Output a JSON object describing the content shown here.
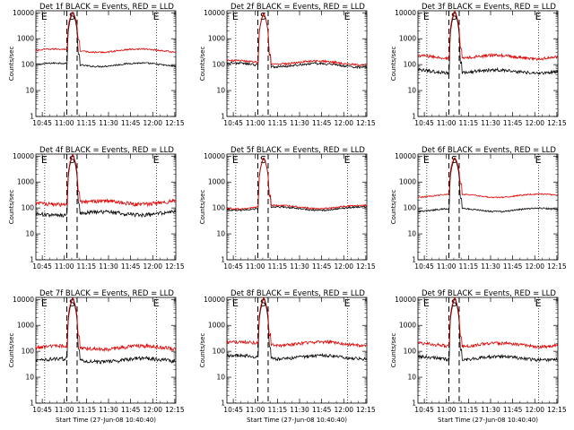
{
  "figure": {
    "colors": {
      "events": "#000000",
      "lld": "#e00000",
      "axes": "#000000",
      "background": "#ffffff"
    }
  },
  "chart_data": [
    {
      "type": "line",
      "title": "Det 1f BLACK = Events, RED = LLD",
      "xlabel": "",
      "ylabel": "Counts/sec",
      "x_ticks": [
        "10:45",
        "11:00",
        "11:15",
        "11:30",
        "11:45",
        "12:00",
        "12:15"
      ],
      "y_ticks": [
        "1",
        "10",
        "100",
        "1000",
        "10000"
      ],
      "yscale": "log",
      "xlim_min": [
        0,
        95
      ],
      "ylim": [
        1,
        12000
      ],
      "interval_markers": [
        {
          "label": "E",
          "at_min": 6
        },
        {
          "label": "S",
          "at_min": 25
        },
        {
          "label": "E",
          "at_min": 82
        }
      ],
      "dashed_lines_min": [
        21,
        28
      ],
      "dotted_lines_min": [
        6,
        82
      ],
      "flare": {
        "start_min": 21.5,
        "peak_min": 25,
        "end_min": 28.5,
        "peak_value": 11000
      },
      "series": [
        {
          "name": "Events",
          "color": "#000000",
          "baseline": 100,
          "amplitude": 0.05,
          "slope": 0.0
        },
        {
          "name": "LLD",
          "color": "#e00000",
          "baseline": 350,
          "amplitude": 0.05,
          "slope": 0.0
        }
      ]
    },
    {
      "type": "line",
      "title": "Det 2f BLACK = Events, RED = LLD",
      "xlabel": "",
      "ylabel": "Counts/sec",
      "x_ticks": [
        "10:45",
        "11:00",
        "11:15",
        "11:30",
        "11:45",
        "12:00",
        "12:15"
      ],
      "y_ticks": [
        "1",
        "10",
        "100",
        "1000",
        "10000"
      ],
      "yscale": "log",
      "xlim_min": [
        0,
        95
      ],
      "ylim": [
        1,
        12000
      ],
      "interval_markers": [
        {
          "label": "E",
          "at_min": 6
        },
        {
          "label": "S",
          "at_min": 25
        },
        {
          "label": "E",
          "at_min": 82
        }
      ],
      "dashed_lines_min": [
        21,
        28
      ],
      "dotted_lines_min": [
        6,
        82
      ],
      "flare": {
        "start_min": 21.5,
        "peak_min": 25,
        "end_min": 28.5,
        "peak_value": 10000
      },
      "series": [
        {
          "name": "Events",
          "color": "#000000",
          "baseline": 100,
          "amplitude": 0.07,
          "slope": -0.1
        },
        {
          "name": "LLD",
          "color": "#e00000",
          "baseline": 125,
          "amplitude": 0.07,
          "slope": -0.1
        }
      ]
    },
    {
      "type": "line",
      "title": "Det 3f BLACK = Events, RED = LLD",
      "xlabel": "",
      "ylabel": "Counts/sec",
      "x_ticks": [
        "10:45",
        "11:00",
        "11:15",
        "11:30",
        "11:45",
        "12:00",
        "12:15"
      ],
      "y_ticks": [
        "1",
        "10",
        "100",
        "1000",
        "10000"
      ],
      "yscale": "log",
      "xlim_min": [
        0,
        95
      ],
      "ylim": [
        1,
        12000
      ],
      "interval_markers": [
        {
          "label": "E",
          "at_min": 6
        },
        {
          "label": "S",
          "at_min": 25
        },
        {
          "label": "E",
          "at_min": 82
        }
      ],
      "dashed_lines_min": [
        21,
        28
      ],
      "dotted_lines_min": [
        6,
        82
      ],
      "flare": {
        "start_min": 21.5,
        "peak_min": 25,
        "end_min": 28.5,
        "peak_value": 12000
      },
      "series": [
        {
          "name": "Events",
          "color": "#000000",
          "baseline": 55,
          "amplitude": 0.1,
          "slope": 0.0
        },
        {
          "name": "LLD",
          "color": "#e00000",
          "baseline": 200,
          "amplitude": 0.1,
          "slope": 0.0
        }
      ]
    },
    {
      "type": "line",
      "title": "Det 4f BLACK = Events, RED = LLD",
      "xlabel": "",
      "ylabel": "Counts/sec",
      "x_ticks": [
        "10:45",
        "11:00",
        "11:15",
        "11:30",
        "11:45",
        "12:00",
        "12:15"
      ],
      "y_ticks": [
        "1",
        "10",
        "100",
        "1000",
        "10000"
      ],
      "yscale": "log",
      "xlim_min": [
        0,
        95
      ],
      "ylim": [
        1,
        12000
      ],
      "interval_markers": [
        {
          "label": "E",
          "at_min": 6
        },
        {
          "label": "S",
          "at_min": 25
        },
        {
          "label": "E",
          "at_min": 82
        }
      ],
      "dashed_lines_min": [
        21,
        28
      ],
      "dotted_lines_min": [
        6,
        82
      ],
      "flare": {
        "start_min": 21.5,
        "peak_min": 25,
        "end_min": 28.5,
        "peak_value": 12000
      },
      "series": [
        {
          "name": "Events",
          "color": "#000000",
          "baseline": 60,
          "amplitude": 0.12,
          "slope": 0.1
        },
        {
          "name": "LLD",
          "color": "#e00000",
          "baseline": 160,
          "amplitude": 0.12,
          "slope": 0.05
        }
      ]
    },
    {
      "type": "line",
      "title": "Det 5f BLACK = Events, RED = LLD",
      "xlabel": "",
      "ylabel": "Counts/sec",
      "x_ticks": [
        "10:45",
        "11:00",
        "11:15",
        "11:30",
        "11:45",
        "12:00",
        "12:15"
      ],
      "y_ticks": [
        "1",
        "10",
        "100",
        "1000",
        "10000"
      ],
      "yscale": "log",
      "xlim_min": [
        0,
        95
      ],
      "ylim": [
        1,
        12000
      ],
      "interval_markers": [
        {
          "label": "E",
          "at_min": 6
        },
        {
          "label": "S",
          "at_min": 25
        },
        {
          "label": "E",
          "at_min": 82
        }
      ],
      "dashed_lines_min": [
        21,
        28
      ],
      "dotted_lines_min": [
        6,
        82
      ],
      "flare": {
        "start_min": 21.5,
        "peak_min": 25,
        "end_min": 28.5,
        "peak_value": 9000
      },
      "series": [
        {
          "name": "Events",
          "color": "#000000",
          "baseline": 95,
          "amplitude": 0.05,
          "slope": 0.0
        },
        {
          "name": "LLD",
          "color": "#e00000",
          "baseline": 110,
          "amplitude": 0.05,
          "slope": 0.0
        }
      ]
    },
    {
      "type": "line",
      "title": "Det 6f BLACK = Events, RED = LLD",
      "xlabel": "",
      "ylabel": "Counts/sec",
      "x_ticks": [
        "10:45",
        "11:00",
        "11:15",
        "11:30",
        "11:45",
        "12:00",
        "12:15"
      ],
      "y_ticks": [
        "1",
        "10",
        "100",
        "1000",
        "10000"
      ],
      "yscale": "log",
      "xlim_min": [
        0,
        95
      ],
      "ylim": [
        1,
        12000
      ],
      "interval_markers": [
        {
          "label": "E",
          "at_min": 6
        },
        {
          "label": "S",
          "at_min": 25
        },
        {
          "label": "E",
          "at_min": 82
        }
      ],
      "dashed_lines_min": [
        21,
        28
      ],
      "dotted_lines_min": [
        6,
        82
      ],
      "flare": {
        "start_min": 21.5,
        "peak_min": 25,
        "end_min": 28.5,
        "peak_value": 9000
      },
      "series": [
        {
          "name": "Events",
          "color": "#000000",
          "baseline": 85,
          "amplitude": 0.05,
          "slope": 0.0
        },
        {
          "name": "LLD",
          "color": "#e00000",
          "baseline": 300,
          "amplitude": 0.04,
          "slope": 0.0
        }
      ]
    },
    {
      "type": "line",
      "title": "Det 7f BLACK = Events, RED = LLD",
      "xlabel": "Start Time (27-Jun-08 10:40:40)",
      "ylabel": "Counts/sec",
      "x_ticks": [
        "10:45",
        "11:00",
        "11:15",
        "11:30",
        "11:45",
        "12:00",
        "12:15"
      ],
      "y_ticks": [
        "1",
        "10",
        "100",
        "1000",
        "10000"
      ],
      "yscale": "log",
      "xlim_min": [
        0,
        95
      ],
      "ylim": [
        1,
        12000
      ],
      "interval_markers": [
        {
          "label": "E",
          "at_min": 6
        },
        {
          "label": "S",
          "at_min": 25
        },
        {
          "label": "E",
          "at_min": 82
        }
      ],
      "dashed_lines_min": [
        21,
        28
      ],
      "dotted_lines_min": [
        6,
        82
      ],
      "flare": {
        "start_min": 21.5,
        "peak_min": 25,
        "end_min": 28.5,
        "peak_value": 12000
      },
      "series": [
        {
          "name": "Events",
          "color": "#000000",
          "baseline": 45,
          "amplitude": 0.12,
          "slope": 0.05
        },
        {
          "name": "LLD",
          "color": "#e00000",
          "baseline": 140,
          "amplitude": 0.12,
          "slope": 0.0
        }
      ]
    },
    {
      "type": "line",
      "title": "Det 8f BLACK = Events, RED = LLD",
      "xlabel": "Start Time (27-Jun-08 10:40:40)",
      "ylabel": "Counts/sec",
      "x_ticks": [
        "10:45",
        "11:00",
        "11:15",
        "11:30",
        "11:45",
        "12:00",
        "12:15"
      ],
      "y_ticks": [
        "1",
        "10",
        "100",
        "1000",
        "10000"
      ],
      "yscale": "log",
      "xlim_min": [
        0,
        95
      ],
      "ylim": [
        1,
        12000
      ],
      "interval_markers": [
        {
          "label": "E",
          "at_min": 6
        },
        {
          "label": "S",
          "at_min": 25
        },
        {
          "label": "E",
          "at_min": 82
        }
      ],
      "dashed_lines_min": [
        21,
        28
      ],
      "dotted_lines_min": [
        6,
        82
      ],
      "flare": {
        "start_min": 21.5,
        "peak_min": 25,
        "end_min": 28.5,
        "peak_value": 12000
      },
      "series": [
        {
          "name": "Events",
          "color": "#000000",
          "baseline": 60,
          "amplitude": 0.1,
          "slope": 0.0
        },
        {
          "name": "LLD",
          "color": "#e00000",
          "baseline": 200,
          "amplitude": 0.1,
          "slope": 0.0
        }
      ]
    },
    {
      "type": "line",
      "title": "Det 9f BLACK = Events, RED = LLD",
      "xlabel": "Start Time (27-Jun-08 10:40:40)",
      "ylabel": "Counts/sec",
      "x_ticks": [
        "10:45",
        "11:00",
        "11:15",
        "11:30",
        "11:45",
        "12:00",
        "12:15"
      ],
      "y_ticks": [
        "1",
        "10",
        "100",
        "1000",
        "10000"
      ],
      "yscale": "log",
      "xlim_min": [
        0,
        95
      ],
      "ylim": [
        1,
        12000
      ],
      "interval_markers": [
        {
          "label": "E",
          "at_min": 6
        },
        {
          "label": "S",
          "at_min": 25
        },
        {
          "label": "E",
          "at_min": 82
        }
      ],
      "dashed_lines_min": [
        21,
        28
      ],
      "dotted_lines_min": [
        6,
        82
      ],
      "flare": {
        "start_min": 21.5,
        "peak_min": 25,
        "end_min": 28.5,
        "peak_value": 12000
      },
      "series": [
        {
          "name": "Events",
          "color": "#000000",
          "baseline": 55,
          "amplitude": 0.1,
          "slope": 0.0
        },
        {
          "name": "LLD",
          "color": "#e00000",
          "baseline": 180,
          "amplitude": 0.1,
          "slope": 0.0
        }
      ]
    }
  ]
}
